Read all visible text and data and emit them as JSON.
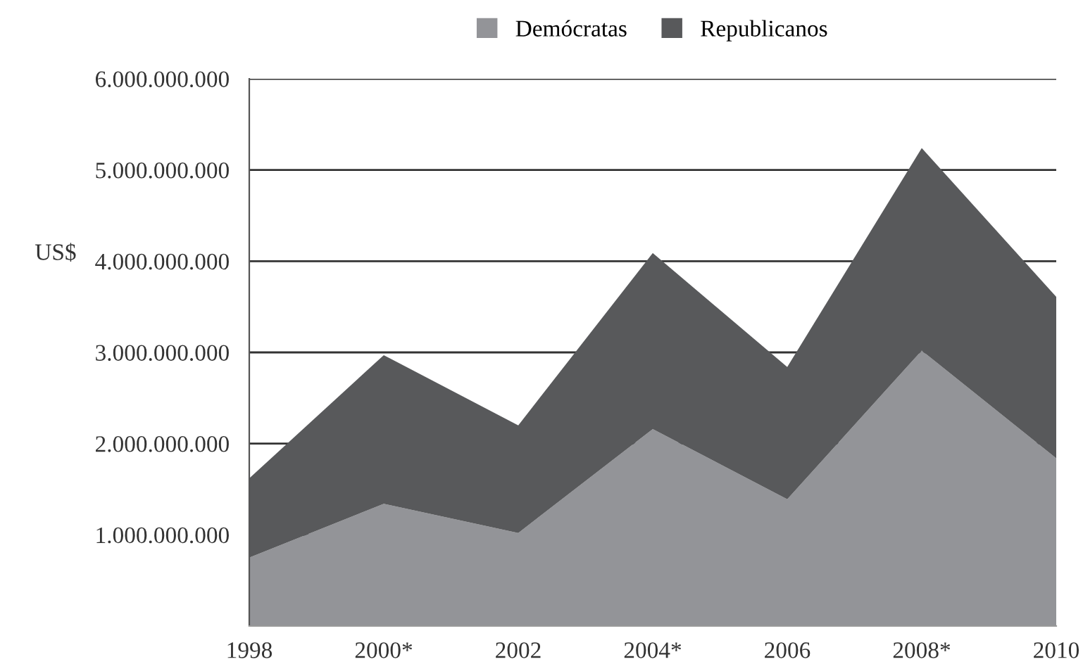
{
  "chart_data": {
    "type": "area",
    "stacked": true,
    "ylabel": "US$",
    "categories": [
      "1998",
      "2000*",
      "2002",
      "2004*",
      "2006",
      "2008*",
      "2010"
    ],
    "series": [
      {
        "name": "Demócratas",
        "color": "#939498",
        "values": [
          750000000,
          1340000000,
          1020000000,
          2160000000,
          1390000000,
          3020000000,
          1840000000
        ]
      },
      {
        "name": "Republicanos",
        "color": "#58595b",
        "values": [
          870000000,
          1630000000,
          1180000000,
          1930000000,
          1450000000,
          2220000000,
          1770000000
        ]
      }
    ],
    "ylim": [
      0,
      6000000000
    ],
    "yticks": [
      {
        "value": 1000000000,
        "label": "1.000.000.000"
      },
      {
        "value": 2000000000,
        "label": "2.000.000.000"
      },
      {
        "value": 3000000000,
        "label": "3.000.000.000"
      },
      {
        "value": 4000000000,
        "label": "4.000.000.000"
      },
      {
        "value": 5000000000,
        "label": "5.000.000.000"
      },
      {
        "value": 6000000000,
        "label": "6.000.000.000"
      }
    ],
    "grid": "y",
    "legend": "top"
  }
}
